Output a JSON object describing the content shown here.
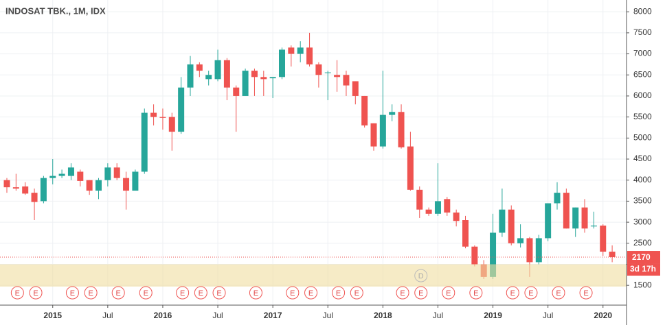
{
  "chart_data": {
    "type": "candlestick",
    "title": "INDOSAT TBK., 1M, IDX",
    "categories": [
      null,
      null,
      null,
      null,
      null,
      "2015",
      null,
      null,
      null,
      null,
      null,
      "Jul",
      null,
      null,
      null,
      null,
      null,
      "2016",
      null,
      null,
      null,
      null,
      null,
      "Jul",
      null,
      null,
      null,
      null,
      null,
      "2017",
      null,
      null,
      null,
      null,
      null,
      "Jul",
      null,
      null,
      null,
      null,
      null,
      "2018",
      null,
      null,
      null,
      null,
      null,
      "Jul",
      null,
      null,
      null,
      null,
      null,
      "2019",
      null,
      null,
      null,
      null,
      null,
      "Jul",
      null,
      null,
      null,
      null,
      null,
      "2020",
      null
    ],
    "open": [
      4000,
      3830,
      3850,
      3700,
      3500,
      4050,
      4100,
      4100,
      4200,
      4000,
      3750,
      4000,
      4300,
      4050,
      3750,
      4200,
      5600,
      5500,
      5500,
      5150,
      6200,
      6750,
      6400,
      6400,
      6850,
      6200,
      6000,
      6600,
      6450,
      6420,
      6450,
      7150,
      7000,
      7150,
      6750,
      6550,
      6500,
      6500,
      6350,
      6000,
      5350,
      4800,
      5550,
      5620,
      4800,
      3770,
      3300,
      3200,
      3550,
      3230,
      3050,
      2420,
      2000,
      1700,
      2750,
      3300,
      2500,
      2620,
      2050,
      2620,
      3450,
      3700,
      2850,
      3350,
      2900,
      2920,
      2300
    ],
    "high": [
      4050,
      4150,
      3950,
      3800,
      4100,
      4500,
      4250,
      4400,
      4250,
      4000,
      4050,
      4400,
      4400,
      4200,
      4250,
      5700,
      5800,
      5700,
      5600,
      6450,
      6950,
      6800,
      6600,
      7100,
      6900,
      6250,
      6650,
      6650,
      6600,
      6450,
      7150,
      7200,
      7300,
      7500,
      6800,
      6600,
      6850,
      6600,
      6350,
      6000,
      5350,
      6600,
      5800,
      5800,
      5150,
      3850,
      3350,
      4400,
      3600,
      3300,
      3150,
      2450,
      2100,
      3200,
      3800,
      3400,
      2950,
      2650,
      2700,
      3450,
      3950,
      3800,
      3350,
      3550,
      3250,
      2950,
      2450
    ],
    "low": [
      3700,
      3750,
      3650,
      3050,
      3450,
      3900,
      4050,
      4000,
      3850,
      3650,
      3550,
      3850,
      4000,
      3300,
      3750,
      4150,
      5300,
      5200,
      4700,
      5100,
      6000,
      6450,
      6250,
      6350,
      5900,
      5150,
      6000,
      6000,
      6000,
      5950,
      6400,
      6700,
      6800,
      6700,
      6200,
      5900,
      6100,
      6000,
      5800,
      5250,
      4700,
      4750,
      5400,
      4750,
      3750,
      3100,
      3150,
      3150,
      3150,
      2900,
      2380,
      1950,
      1650,
      1650,
      2650,
      2450,
      2400,
      1700,
      2000,
      2550,
      3300,
      2850,
      2650,
      2750,
      2850,
      2200,
      2050
    ],
    "close": [
      3830,
      3800,
      3680,
      3480,
      4050,
      4100,
      4150,
      4300,
      3980,
      3750,
      4000,
      4300,
      4050,
      3750,
      4200,
      5600,
      5500,
      5480,
      5150,
      6200,
      6750,
      6600,
      6500,
      6850,
      6200,
      6000,
      6600,
      6450,
      6400,
      6450,
      7100,
      7000,
      7150,
      6750,
      6500,
      6560,
      6450,
      6250,
      6000,
      5300,
      4800,
      5550,
      5620,
      4780,
      3770,
      3300,
      3200,
      3500,
      3230,
      3030,
      2420,
      2000,
      1700,
      2750,
      3300,
      2500,
      2620,
      2050,
      2620,
      3450,
      3700,
      2850,
      3350,
      2850,
      2920,
      2300,
      2170
    ],
    "up_color": "#26a69a",
    "down_color": "#ef5350",
    "ylim": [
      1030,
      8280
    ],
    "yticks": [
      1500,
      2000,
      2500,
      3000,
      3500,
      4000,
      4500,
      5000,
      5500,
      6000,
      6500,
      7000,
      7500,
      8000
    ],
    "grid": true,
    "last_price": 2170,
    "countdown": "3d 17h",
    "highlight_range": [
      1470,
      2000
    ],
    "events": [
      null,
      "E",
      null,
      "E",
      null,
      null,
      null,
      "E",
      null,
      "E",
      null,
      null,
      "E",
      null,
      null,
      "E",
      null,
      null,
      null,
      "E",
      null,
      "E",
      null,
      "E",
      null,
      null,
      null,
      "E",
      null,
      null,
      null,
      "E",
      null,
      "E",
      null,
      null,
      "E",
      null,
      "E",
      null,
      null,
      null,
      null,
      "E",
      null,
      "E",
      null,
      null,
      "E",
      null,
      null,
      "E",
      null,
      null,
      null,
      "E",
      null,
      "E",
      null,
      null,
      "E",
      null,
      null,
      "E",
      null,
      null,
      null
    ],
    "dividends": [
      null,
      null,
      null,
      null,
      null,
      null,
      null,
      null,
      null,
      null,
      null,
      null,
      null,
      null,
      null,
      null,
      null,
      null,
      null,
      null,
      null,
      null,
      null,
      null,
      null,
      null,
      null,
      null,
      null,
      null,
      null,
      null,
      null,
      null,
      null,
      null,
      null,
      null,
      null,
      null,
      null,
      null,
      null,
      null,
      null,
      "D",
      null,
      null,
      null,
      null,
      null,
      null,
      null,
      null,
      null,
      null,
      null,
      null,
      null,
      null,
      null,
      null,
      null,
      null,
      null,
      null,
      null
    ]
  }
}
